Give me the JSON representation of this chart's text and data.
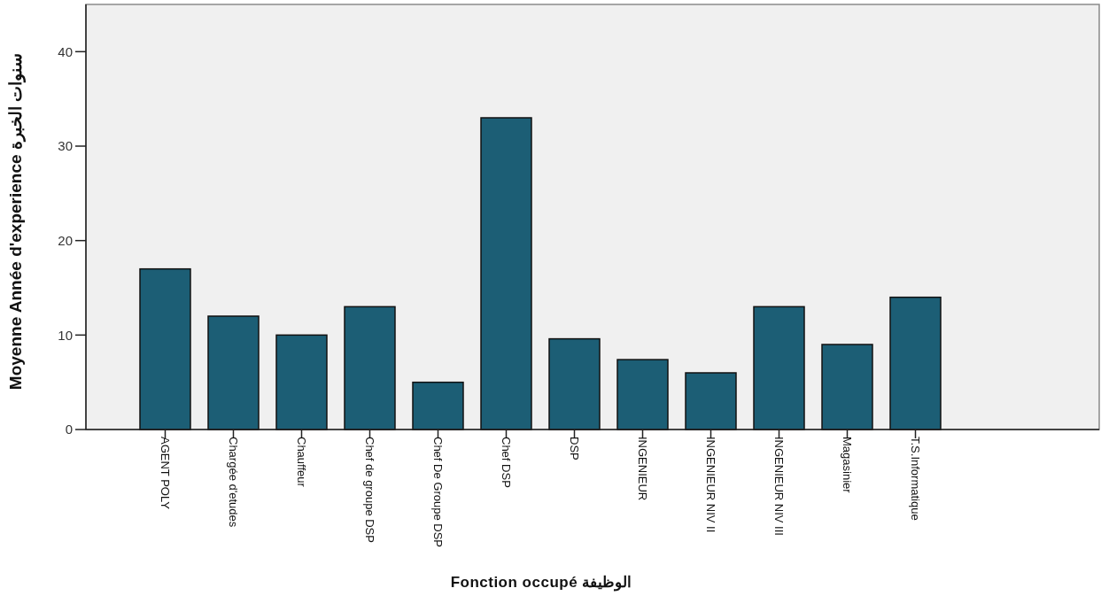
{
  "chart_data": {
    "type": "bar",
    "xlabel": "Fonction occupé الوظيفة",
    "ylabel": "Moyenne Année d'experience سنوات الخبرة",
    "categories": [
      "AGENT POLY",
      "Chargée d'etudes",
      "Chauffeur",
      "Chef de groupe DSP",
      "Chef De Groupe DSP",
      "Chef DSP",
      "DSP",
      "INGENIEUR",
      "INGENIEUR NIV II",
      "INGENIEUR NIV III",
      "Magasinier",
      "T.S.Informatique"
    ],
    "values": [
      17,
      12,
      10,
      13,
      5,
      33,
      9.6,
      7.4,
      6,
      13,
      9,
      14
    ],
    "color": "#1c5e75",
    "ylim": [
      0,
      45
    ],
    "yticks": [
      0,
      10,
      20,
      30,
      40
    ]
  }
}
